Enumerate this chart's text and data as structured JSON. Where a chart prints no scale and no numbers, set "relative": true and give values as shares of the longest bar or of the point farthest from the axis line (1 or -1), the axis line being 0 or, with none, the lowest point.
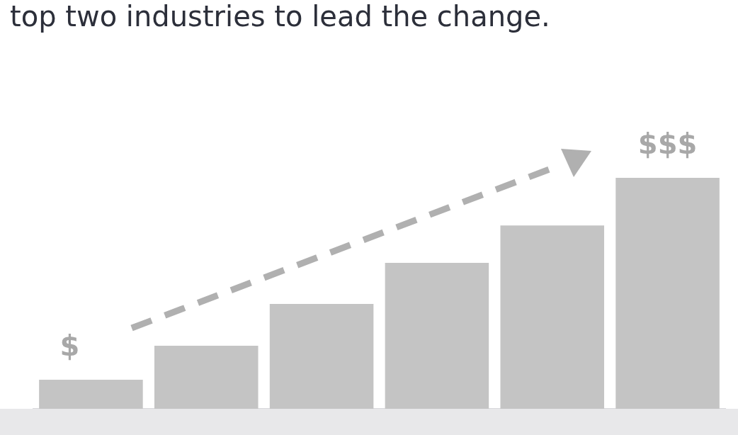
{
  "chart_data": {
    "type": "bar",
    "title": "top two industries to lead the change.",
    "categories": [
      null,
      null,
      null,
      null,
      null,
      null
    ],
    "values": [
      0.126,
      0.273,
      0.454,
      0.632,
      0.794,
      1.0
    ],
    "color": "#c4c4c4",
    "relative": true,
    "legend": false,
    "annotations": [
      "$",
      "$$$"
    ]
  }
}
